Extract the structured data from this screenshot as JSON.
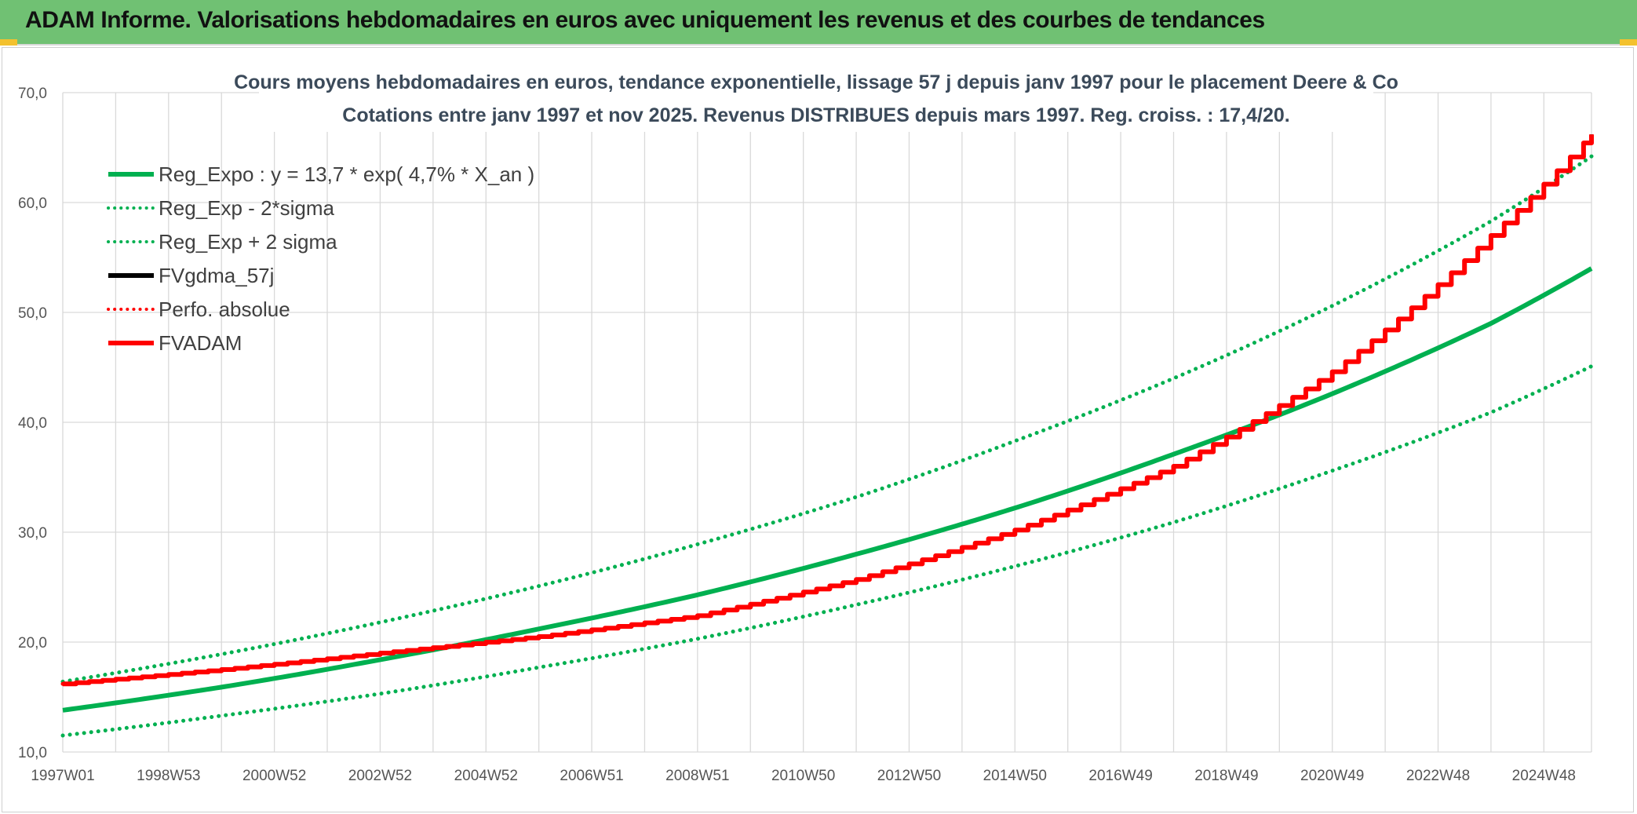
{
  "header": {
    "title": "ADAM Informe. Valorisations hebdomadaires en euros avec uniquement les revenus et des courbes de tendances"
  },
  "colors": {
    "banner": "#70c173",
    "green": "#00b050",
    "red": "#ff0000",
    "black": "#000000",
    "grid": "#d9d9d9"
  },
  "chart_data": {
    "type": "line",
    "title": "Cours moyens hebdomadaires en euros, tendance exponentielle, lissage 57 j depuis janv 1997 pour le placement Deere & Co",
    "subtitle": "Cotations entre janv 1997 et nov 2025. Revenus DISTRIBUES depuis mars 1997. Reg. croiss. : 17,4/20.",
    "xlabel": "",
    "ylabel": "",
    "x_range": [
      1997.0,
      2025.9
    ],
    "ylim": [
      10,
      70
    ],
    "y_ticks": [
      10,
      20,
      30,
      40,
      50,
      60,
      70
    ],
    "y_tick_labels": [
      "10,0",
      "20,0",
      "30,0",
      "40,0",
      "50,0",
      "60,0",
      "70,0"
    ],
    "x_ticks": [
      {
        "x": 1997.0,
        "label": "1997W01"
      },
      {
        "x": 1999.0,
        "label": "1998W53"
      },
      {
        "x": 2001.0,
        "label": "2000W52"
      },
      {
        "x": 2003.0,
        "label": "2002W52"
      },
      {
        "x": 2005.0,
        "label": "2004W52"
      },
      {
        "x": 2007.0,
        "label": "2006W51"
      },
      {
        "x": 2009.0,
        "label": "2008W51"
      },
      {
        "x": 2011.0,
        "label": "2010W50"
      },
      {
        "x": 2013.0,
        "label": "2012W50"
      },
      {
        "x": 2015.0,
        "label": "2014W50"
      },
      {
        "x": 2017.0,
        "label": "2016W49"
      },
      {
        "x": 2019.0,
        "label": "2018W49"
      },
      {
        "x": 2021.0,
        "label": "2020W49"
      },
      {
        "x": 2023.0,
        "label": "2022W48"
      },
      {
        "x": 2025.0,
        "label": "2024W48"
      }
    ],
    "grid": true,
    "legend_position": "top-left",
    "series": [
      {
        "name": "Reg_Expo : y = 13,7 * exp( 4,7% *  X_an )",
        "color": "#00b050",
        "style": "solid",
        "x": [
          1997,
          2000,
          2003,
          2006,
          2009,
          2012,
          2015,
          2018,
          2021,
          2024,
          2025.9
        ],
        "y": [
          13.8,
          15.9,
          18.4,
          21.2,
          24.3,
          28.0,
          32.2,
          37.1,
          42.6,
          49.0,
          54.0
        ]
      },
      {
        "name": "Reg_Exp - 2*sigma",
        "color": "#00b050",
        "style": "dotted",
        "x": [
          1997,
          2000,
          2003,
          2006,
          2009,
          2012,
          2015,
          2018,
          2021,
          2024,
          2025.9
        ],
        "y": [
          11.5,
          13.3,
          15.3,
          17.7,
          20.3,
          23.4,
          26.9,
          30.9,
          35.6,
          40.9,
          45.1
        ]
      },
      {
        "name": "Reg_Exp + 2 sigma",
        "color": "#00b050",
        "style": "dotted",
        "x": [
          1997,
          2000,
          2003,
          2006,
          2009,
          2012,
          2015,
          2018,
          2021,
          2024,
          2025.9
        ],
        "y": [
          16.4,
          18.9,
          21.8,
          25.1,
          28.9,
          33.2,
          38.3,
          44.0,
          50.6,
          58.3,
          64.2
        ]
      },
      {
        "name": "FVgdma_57j",
        "color": "#000000",
        "style": "solid",
        "x": [
          1997,
          2000,
          2003,
          2006,
          2009,
          2012,
          2015,
          2018,
          2021,
          2024,
          2025.9
        ],
        "y": [
          16.2,
          17.5,
          19.0,
          20.5,
          22.4,
          25.7,
          30.2,
          36.0,
          44.6,
          57.0,
          66.2
        ]
      },
      {
        "name": "Perfo. absolue",
        "color": "#ff0000",
        "style": "dotted",
        "x": [
          1997,
          2000,
          2003,
          2006,
          2009,
          2012,
          2015,
          2018,
          2021,
          2024,
          2025.9
        ],
        "y": [
          16.2,
          17.5,
          19.0,
          20.5,
          22.4,
          25.7,
          30.2,
          36.0,
          44.6,
          57.0,
          66.2
        ]
      },
      {
        "name": "FVADAM",
        "color": "#ff0000",
        "style": "solid",
        "x": [
          1997,
          2000,
          2003,
          2006,
          2009,
          2012,
          2015,
          2018,
          2021,
          2024,
          2025.9
        ],
        "y": [
          16.2,
          17.5,
          19.0,
          20.5,
          22.4,
          25.7,
          30.2,
          36.0,
          44.6,
          57.0,
          66.2
        ]
      }
    ]
  }
}
